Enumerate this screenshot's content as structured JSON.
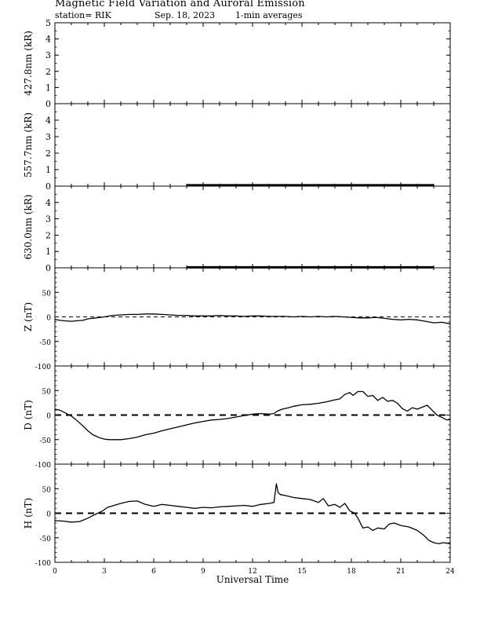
{
  "header": {
    "title": "Magnetic Field Variation and Auroral Emission",
    "station": "station= RIK",
    "date": "Sep. 18, 2023",
    "averaging": "1-min averages"
  },
  "chart_data": {
    "type": "line",
    "xlabel": "Universal Time",
    "xlim": [
      0,
      24
    ],
    "xticks": [
      0,
      3,
      6,
      9,
      12,
      15,
      18,
      21,
      24
    ],
    "panels": [
      {
        "ylabel": "427.8nm (kR)",
        "ylim": [
          0,
          5
        ],
        "yticks": [
          0,
          1,
          2,
          3,
          4,
          5
        ],
        "series": [
          {
            "x": [],
            "y": []
          }
        ]
      },
      {
        "ylabel": "557.7nm (kR)",
        "ylim": [
          0,
          5
        ],
        "yticks": [
          0,
          1,
          2,
          3,
          4
        ],
        "series": [
          {
            "x": [
              8.0,
              9,
              11,
              13,
              15,
              17,
              19,
              21,
              23.0
            ],
            "y": [
              0.05,
              0.05,
              0.05,
              0.05,
              0.05,
              0.05,
              0.05,
              0.05,
              0.05
            ]
          }
        ]
      },
      {
        "ylabel": "630.0nm (kR)",
        "ylim": [
          0,
          5
        ],
        "yticks": [
          0,
          1,
          2,
          3,
          4
        ],
        "series": [
          {
            "x": [
              8.0,
              9,
              11,
              13,
              15,
              17,
              19,
              21,
              23.0
            ],
            "y": [
              0.03,
              0.03,
              0.03,
              0.03,
              0.03,
              0.03,
              0.03,
              0.03,
              0.03
            ]
          }
        ]
      },
      {
        "ylabel": "Z (nT)",
        "ylim": [
          -100,
          100
        ],
        "yticks": [
          -100,
          -50,
          0,
          50
        ],
        "zero_line": "dashed-thin",
        "series": [
          {
            "x": [
              0,
              0.3,
              0.6,
              1.0,
              1.3,
              1.7,
              2.0,
              2.5,
              3.0,
              3.5,
              4.0,
              4.5,
              5.0,
              5.5,
              6.0,
              6.5,
              7.0,
              7.5,
              8.0,
              8.5,
              9.0,
              9.5,
              10,
              10.5,
              11,
              11.5,
              12,
              12.5,
              13,
              13.5,
              14,
              14.5,
              15,
              15.5,
              16,
              16.5,
              17,
              17.5,
              18,
              18.5,
              19,
              19.5,
              20,
              20.5,
              21,
              21.5,
              22,
              22.5,
              23,
              23.5,
              24
            ],
            "y": [
              -5,
              -7,
              -8,
              -9,
              -8,
              -7,
              -4,
              -2,
              0,
              3,
              4,
              5,
              5,
              6,
              6,
              5,
              4,
              3,
              3,
              2,
              2,
              2,
              3,
              2,
              2,
              1,
              2,
              2,
              1,
              1,
              1,
              0,
              1,
              0,
              1,
              0,
              1,
              0,
              -1,
              -2,
              -2,
              -1,
              -3,
              -5,
              -6,
              -5,
              -6,
              -9,
              -12,
              -11,
              -14
            ]
          }
        ]
      },
      {
        "ylabel": "D (nT)",
        "ylim": [
          -100,
          100
        ],
        "yticks": [
          -100,
          -50,
          0,
          50
        ],
        "zero_line": "dashed-thick",
        "series": [
          {
            "x": [
              0,
              0.3,
              0.6,
              1.0,
              1.3,
              1.7,
              2.0,
              2.3,
              2.7,
              3.0,
              3.3,
              3.7,
              4.0,
              4.5,
              5.0,
              5.5,
              6.0,
              6.5,
              7.0,
              7.5,
              8.0,
              8.5,
              9.0,
              9.5,
              10,
              10.5,
              11,
              11.5,
              12,
              12.5,
              13,
              13.3,
              13.5,
              13.8,
              14.2,
              14.5,
              15,
              15.5,
              16,
              16.5,
              17,
              17.3,
              17.6,
              17.9,
              18.1,
              18.4,
              18.7,
              19.0,
              19.3,
              19.6,
              19.9,
              20.2,
              20.5,
              20.8,
              21.1,
              21.4,
              21.7,
              22.0,
              22.3,
              22.6,
              22.9,
              23.2,
              23.5,
              23.8,
              24
            ],
            "y": [
              12,
              10,
              5,
              -2,
              -10,
              -22,
              -32,
              -40,
              -46,
              -49,
              -50,
              -50,
              -50,
              -48,
              -45,
              -40,
              -37,
              -32,
              -28,
              -24,
              -20,
              -16,
              -13,
              -10,
              -9,
              -7,
              -4,
              -1,
              2,
              3,
              2,
              3,
              8,
              12,
              15,
              18,
              21,
              22,
              24,
              27,
              31,
              33,
              42,
              46,
              40,
              48,
              48,
              38,
              40,
              30,
              36,
              28,
              30,
              24,
              13,
              8,
              15,
              12,
              16,
              20,
              10,
              0,
              -5,
              -10,
              -8
            ]
          }
        ]
      },
      {
        "ylabel": "H (nT)",
        "ylim": [
          -100,
          100
        ],
        "yticks": [
          -100,
          -50,
          0,
          50
        ],
        "zero_line": "dashed-thick",
        "series": [
          {
            "x": [
              0,
              0.5,
              1.0,
              1.5,
              2.0,
              2.3,
              2.6,
              2.9,
              3.2,
              3.5,
              4.0,
              4.5,
              5.0,
              5.5,
              6.0,
              6.5,
              7.0,
              7.5,
              8.0,
              8.5,
              9.0,
              9.5,
              10,
              10.5,
              11,
              11.5,
              12,
              12.5,
              13,
              13.3,
              13.45,
              13.55,
              13.7,
              14.0,
              14.5,
              15.0,
              15.5,
              16.0,
              16.3,
              16.6,
              17.0,
              17.3,
              17.6,
              17.9,
              18.2,
              18.4,
              18.7,
              19.0,
              19.3,
              19.6,
              20.0,
              20.3,
              20.6,
              21.0,
              21.5,
              22.0,
              22.4,
              22.7,
              23.0,
              23.3,
              23.6,
              24
            ],
            "y": [
              -15,
              -16,
              -18,
              -17,
              -10,
              -5,
              0,
              5,
              12,
              15,
              20,
              24,
              25,
              18,
              14,
              18,
              16,
              14,
              12,
              10,
              12,
              11,
              13,
              14,
              15,
              16,
              14,
              18,
              20,
              22,
              60,
              42,
              38,
              36,
              32,
              30,
              28,
              22,
              30,
              15,
              18,
              12,
              20,
              5,
              0,
              -10,
              -30,
              -28,
              -35,
              -30,
              -32,
              -22,
              -20,
              -25,
              -28,
              -35,
              -45,
              -55,
              -60,
              -62,
              -60,
              -62
            ]
          }
        ]
      }
    ]
  }
}
